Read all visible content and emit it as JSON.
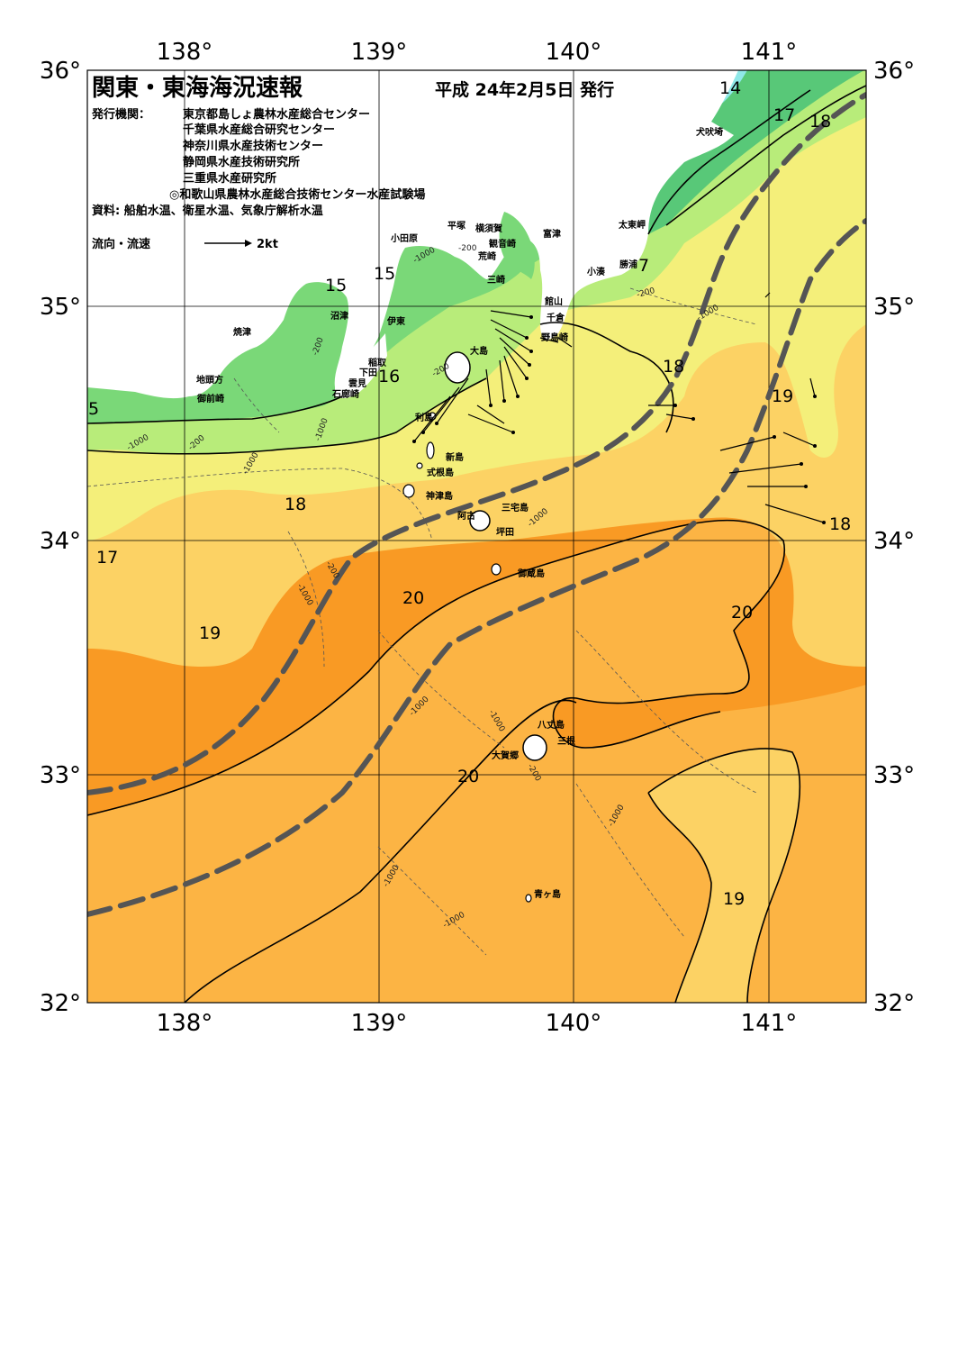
{
  "header": {
    "title": "関東・東海海況速報",
    "date": "平成 24年2月5日 発行",
    "issuer_label": "発行機関：",
    "issuers": [
      "東京都島しょ農林水産総合センター",
      "千葉県水産総合研究センター",
      "神奈川県水産技術センター",
      "静岡県水産技術研究所",
      "三重県水産研究所",
      "◎和歌山県農林水産総合技術センター水産試験場"
    ],
    "source": "資料: 船舶水温、衛星水温、気象庁解析水温",
    "legend_label": "流向・流速",
    "legend_scale": "2kt"
  },
  "axes": {
    "lon_top": [
      "138°",
      "139°",
      "140°",
      "141°"
    ],
    "lon_bottom": [
      "138°",
      "139°",
      "140°",
      "141°"
    ],
    "lat_left": [
      "36°",
      "35°",
      "34°",
      "33°",
      "32°"
    ],
    "lat_right": [
      "36°",
      "35°",
      "34°",
      "33°",
      "32°"
    ]
  },
  "places": [
    {
      "name": "犬吠埼"
    },
    {
      "name": "太東岬"
    },
    {
      "name": "勝浦"
    },
    {
      "name": "小湊"
    },
    {
      "name": "館山"
    },
    {
      "name": "千倉"
    },
    {
      "name": "野島崎"
    },
    {
      "name": "富津"
    },
    {
      "name": "横須賀"
    },
    {
      "name": "観音崎"
    },
    {
      "name": "荒崎"
    },
    {
      "name": "三崎"
    },
    {
      "name": "平塚"
    },
    {
      "name": "小田原"
    },
    {
      "name": "沼津"
    },
    {
      "name": "伊東"
    },
    {
      "name": "焼津"
    },
    {
      "name": "稲取"
    },
    {
      "name": "下田"
    },
    {
      "name": "雲見"
    },
    {
      "name": "石廊崎"
    },
    {
      "name": "地頭方"
    },
    {
      "name": "御前崎"
    },
    {
      "name": "大島"
    },
    {
      "name": "利島"
    },
    {
      "name": "新島"
    },
    {
      "name": "式根島"
    },
    {
      "name": "神津島"
    },
    {
      "name": "三宅島"
    },
    {
      "name": "阿古"
    },
    {
      "name": "坪田"
    },
    {
      "name": "御蔵島"
    },
    {
      "name": "八丈島"
    },
    {
      "name": "三根"
    },
    {
      "name": "大賀郷"
    },
    {
      "name": "青ヶ島"
    }
  ],
  "isotherm_labels": [
    "14",
    "17",
    "18",
    "7",
    "15",
    "15",
    "16",
    "5",
    "18",
    "18",
    "19",
    "17",
    "18",
    "19",
    "20",
    "20",
    "20",
    "19"
  ],
  "depth_labels": [
    "-1000",
    "-200",
    "-200",
    "-1000",
    "-1000",
    "-200",
    "-200",
    "-200",
    "-1000",
    "-1000",
    "-1000",
    "-1000",
    "-200",
    "-1000",
    "-1000",
    "-1000",
    "-200"
  ],
  "colors": {
    "t13": "#8fe8e8",
    "t14": "#58c878",
    "t15": "#7ad878",
    "t16": "#b8ec7a",
    "t17": "#f4ef7a",
    "t18": "#fcd264",
    "t19": "#fcb444",
    "t20": "#f99a24",
    "land": "#ffffff",
    "kuroshio": "#555555"
  }
}
